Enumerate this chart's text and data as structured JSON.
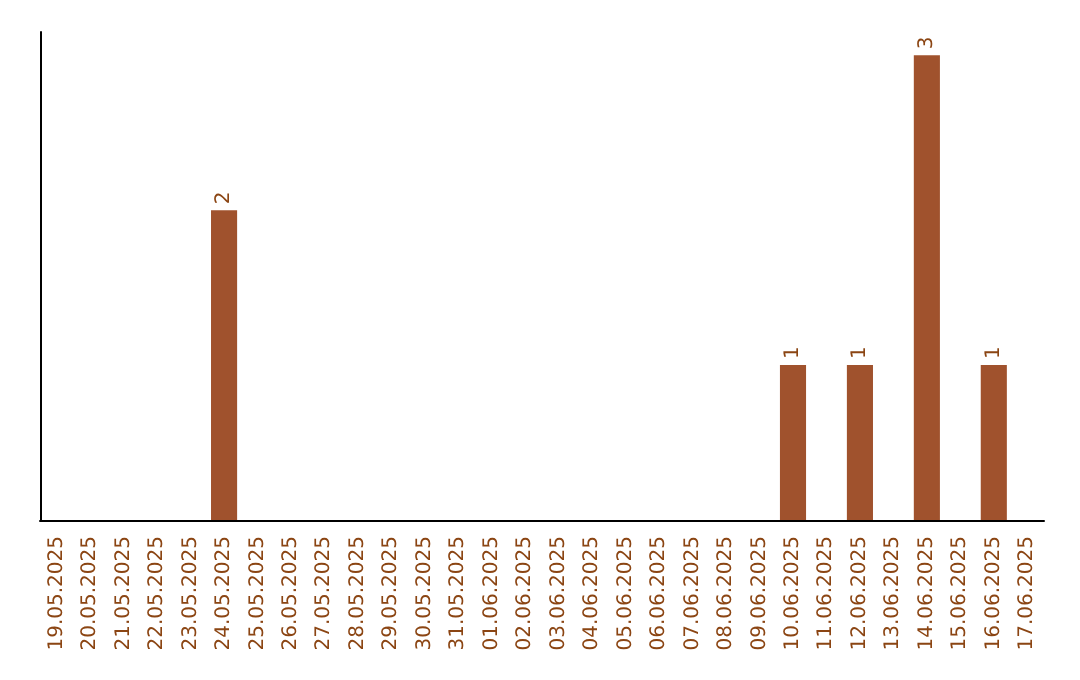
{
  "chart_data": {
    "type": "bar",
    "categories": [
      "19.05.2025",
      "20.05.2025",
      "21.05.2025",
      "22.05.2025",
      "23.05.2025",
      "24.05.2025",
      "25.05.2025",
      "26.05.2025",
      "27.05.2025",
      "28.05.2025",
      "29.05.2025",
      "30.05.2025",
      "31.05.2025",
      "01.06.2025",
      "02.06.2025",
      "03.06.2025",
      "04.06.2025",
      "05.06.2025",
      "06.06.2025",
      "07.06.2025",
      "08.06.2025",
      "09.06.2025",
      "10.06.2025",
      "11.06.2025",
      "12.06.2025",
      "13.06.2025",
      "14.06.2025",
      "15.06.2025",
      "16.06.2025",
      "17.06.2025"
    ],
    "values": [
      null,
      null,
      null,
      null,
      null,
      2,
      null,
      null,
      null,
      null,
      null,
      null,
      null,
      null,
      null,
      null,
      null,
      null,
      null,
      null,
      null,
      null,
      1,
      null,
      1,
      null,
      3,
      null,
      1,
      null
    ],
    "color": "#a0522d",
    "ylim": [
      0,
      3.15
    ],
    "data_labels": true,
    "tick_labels": "x"
  }
}
